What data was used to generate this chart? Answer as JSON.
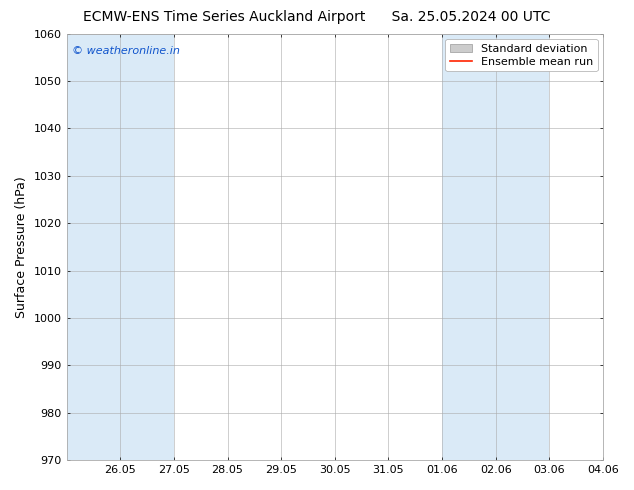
{
  "title": "ECMW-ENS Time Series Auckland Airport      Sa. 25.05.2024 00 UTC",
  "title_left": "ECMW-ENS Time Series Auckland Airport",
  "title_right": "Sa. 25.05.2024 00 UTC",
  "ylabel": "Surface Pressure (hPa)",
  "ylim": [
    970,
    1060
  ],
  "yticks": [
    970,
    980,
    990,
    1000,
    1010,
    1020,
    1030,
    1040,
    1050,
    1060
  ],
  "xlim": [
    0,
    10
  ],
  "xtick_labels": [
    "26.05",
    "27.05",
    "28.05",
    "29.05",
    "30.05",
    "31.05",
    "01.06",
    "02.06",
    "03.06",
    "04.06"
  ],
  "xtick_positions": [
    1,
    2,
    3,
    4,
    5,
    6,
    7,
    8,
    9,
    10
  ],
  "shaded_bands": [
    {
      "x_start": 0,
      "x_end": 2,
      "color": "#daeaf7"
    },
    {
      "x_start": 7,
      "x_end": 9,
      "color": "#daeaf7"
    }
  ],
  "watermark_text": "© weatheronline.in",
  "watermark_color": "#1155cc",
  "background_color": "#ffffff",
  "plot_bg_color": "#ffffff",
  "spine_color": "#aaaaaa",
  "legend_items": [
    {
      "label": "Standard deviation",
      "color": "#cccccc",
      "type": "patch"
    },
    {
      "label": "Ensemble mean run",
      "color": "#ff2200",
      "type": "line"
    }
  ],
  "title_fontsize": 10,
  "ylabel_fontsize": 9,
  "tick_fontsize": 8,
  "legend_fontsize": 8,
  "watermark_fontsize": 8
}
